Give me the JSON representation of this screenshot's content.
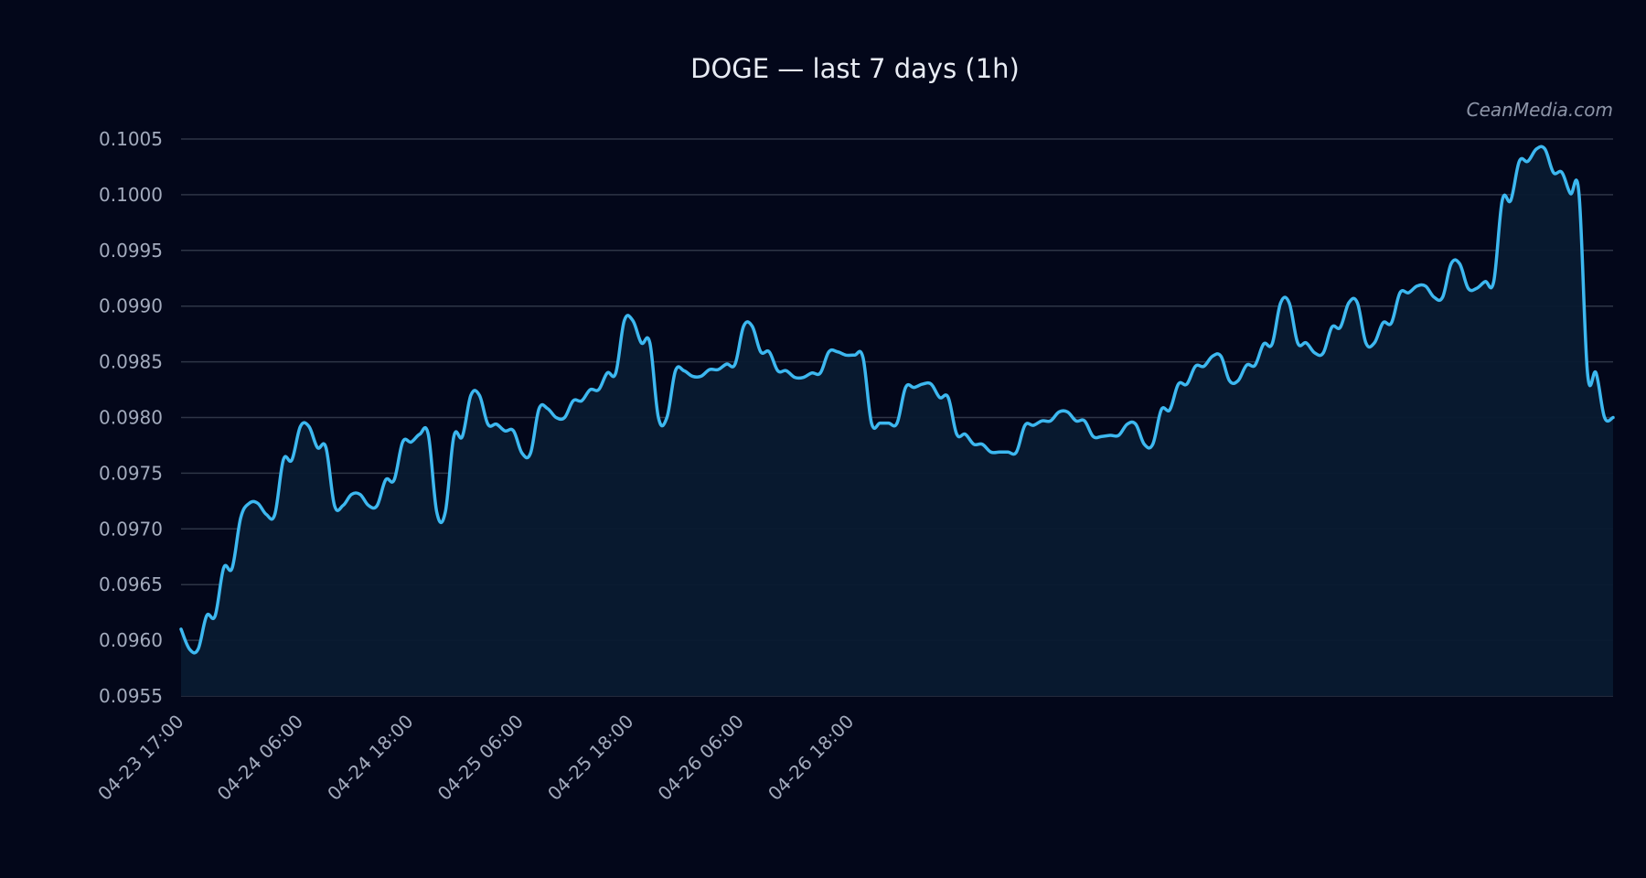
{
  "chart_data": {
    "type": "area",
    "title": "DOGE — last 7 days (1h)",
    "watermark": "CeanMedia.com",
    "xlabel": "",
    "ylabel": "",
    "ylim": [
      0.0955,
      0.1005
    ],
    "yticks": [
      "0.1005",
      "0.1000",
      "0.0995",
      "0.0990",
      "0.0985",
      "0.0980",
      "0.0975",
      "0.0970",
      "0.0965",
      "0.0960",
      "0.0955"
    ],
    "xticks": [
      "04-23 17:00",
      "04-24 06:00",
      "04-24 18:00",
      "04-25 06:00",
      "04-25 18:00",
      "04-26 06:00",
      "04-26 18:00"
    ],
    "grid": true,
    "colors": {
      "line": "#3db8f0",
      "fill": "#081a30",
      "background": "#03071a",
      "grid": "#2e3546"
    },
    "series": [
      {
        "values": [
          0.0961,
          0.09592,
          0.09592,
          0.09622,
          0.09622,
          0.09665,
          0.09665,
          0.0971,
          0.09723,
          0.09723,
          0.09713,
          0.09713,
          0.09762,
          0.09762,
          0.09792,
          0.09792,
          0.09773,
          0.09773,
          0.09721,
          0.09721,
          0.09731,
          0.09731,
          0.09721,
          0.09721,
          0.09744,
          0.09744,
          0.09778,
          0.09778,
          0.09785,
          0.09785,
          0.09715,
          0.09715,
          0.09783,
          0.09783,
          0.0982,
          0.0982,
          0.09794,
          0.09794,
          0.09788,
          0.09788,
          0.09768,
          0.09768,
          0.09808,
          0.09808,
          0.098,
          0.098,
          0.09815,
          0.09815,
          0.09825,
          0.09825,
          0.0984,
          0.0984,
          0.09887,
          0.09887,
          0.09867,
          0.09867,
          0.098,
          0.098,
          0.09842,
          0.09842,
          0.09837,
          0.09837,
          0.09843,
          0.09843,
          0.09848,
          0.09848,
          0.09882,
          0.09882,
          0.09859,
          0.09859,
          0.09842,
          0.09842,
          0.09836,
          0.09836,
          0.0984,
          0.0984,
          0.09859,
          0.09859,
          0.09856,
          0.09856,
          0.09854,
          0.09795,
          0.09795,
          0.09795,
          0.09795,
          0.09827,
          0.09827,
          0.0983,
          0.0983,
          0.09818,
          0.09818,
          0.09785,
          0.09785,
          0.09776,
          0.09776,
          0.09769,
          0.09769,
          0.09769,
          0.09769,
          0.09793,
          0.09793,
          0.09797,
          0.09797,
          0.09805,
          0.09805,
          0.09797,
          0.09797,
          0.09783,
          0.09783,
          0.09784,
          0.09784,
          0.09794,
          0.09794,
          0.09776,
          0.09776,
          0.09807,
          0.09807,
          0.0983,
          0.0983,
          0.09846,
          0.09846,
          0.09855,
          0.09855,
          0.09833,
          0.09833,
          0.09847,
          0.09847,
          0.09866,
          0.09866,
          0.09903,
          0.09903,
          0.09867,
          0.09867,
          0.09858,
          0.09858,
          0.09881,
          0.09881,
          0.09903,
          0.09903,
          0.09867,
          0.09867,
          0.09885,
          0.09885,
          0.09912,
          0.09912,
          0.09918,
          0.09918,
          0.09908,
          0.09908,
          0.09938,
          0.09938,
          0.09916,
          0.09916,
          0.09922,
          0.09922,
          0.09995,
          0.09995,
          0.1003,
          0.1003,
          0.10041,
          0.10041,
          0.1002,
          0.1002,
          0.10001,
          0.10001,
          0.0984,
          0.0984,
          0.098,
          0.098
        ]
      }
    ]
  }
}
